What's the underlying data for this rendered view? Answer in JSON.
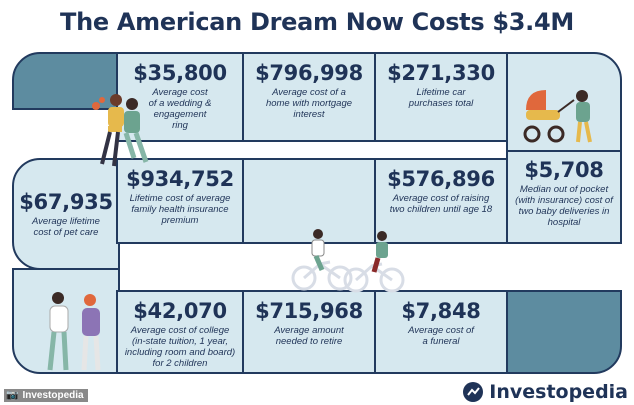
{
  "title": "The American Dream Now Costs $3.4M",
  "tiles": {
    "wedding": {
      "amount": "$35,800",
      "desc": "Average cost of a wedding & engagement ring"
    },
    "home": {
      "amount": "$796,998",
      "desc": "Average cost of a home with mortgage interest"
    },
    "car": {
      "amount": "$271,330",
      "desc": "Lifetime car purchases total"
    },
    "pet": {
      "amount": "$67,935",
      "desc": "Average lifetime cost of pet care"
    },
    "health": {
      "amount": "$934,752",
      "desc": "Lifetime cost of average family health insurance premium"
    },
    "children": {
      "amount": "$576,896",
      "desc": "Average cost of raising two children until age 18"
    },
    "delivery": {
      "amount": "$5,708",
      "desc": "Median out of pocket (with insurance) cost of two baby deliveries in hospital"
    },
    "college": {
      "amount": "$42,070",
      "desc": "Average cost of college (in-state tuition, 1 year, including room and board) for 2 children"
    },
    "retire": {
      "amount": "$715,968",
      "desc": "Average amount needed to retire"
    },
    "funeral": {
      "amount": "$7,848",
      "desc": "Average cost of a funeral"
    }
  },
  "footer": {
    "credit": "Investopedia",
    "brand": "Investopedia"
  },
  "colors": {
    "navy": "#1f3357",
    "tile": "#d6e8ef",
    "accent": "#5d8ca0"
  },
  "icons": [
    "couple-illustration",
    "baby-stroller-illustration",
    "cyclists-illustration",
    "couple-talking-illustration",
    "camera-icon",
    "investopedia-logo-icon"
  ]
}
